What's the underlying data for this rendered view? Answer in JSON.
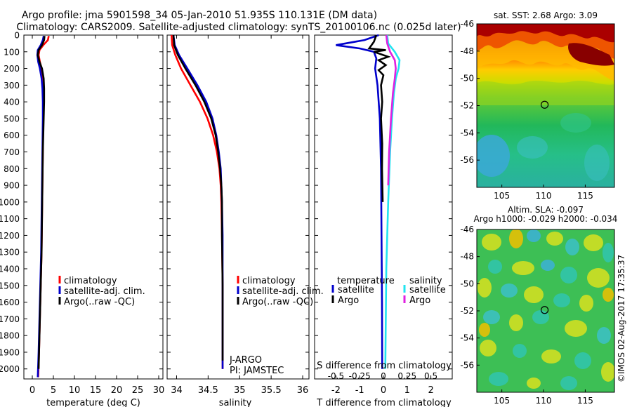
{
  "header": {
    "line1": "Argo profile: jma 5901598_34 05-Jan-2010 51.935S 110.131E (DM data)",
    "line2": "Climatology: CARS2009. Satellite-adjusted climatology: synTS_20100106.nc (0.025d later)"
  },
  "colors": {
    "clim": "#ff0000",
    "sat": "#0000cc",
    "argo": "#000000",
    "sat_s": "#22e4f0",
    "argo_s": "#e020e0"
  },
  "chart_data": [
    {
      "type": "line",
      "id": "temperature",
      "xlabel": "temperature (deg C)",
      "ylabel": "",
      "xlim": [
        -2,
        31
      ],
      "ylim": [
        2060,
        0
      ],
      "xticks": [
        "0",
        "5",
        "10",
        "15",
        "20",
        "25",
        "30"
      ],
      "yticks": [
        "0",
        "100",
        "200",
        "300",
        "400",
        "500",
        "600",
        "700",
        "800",
        "900",
        "1000",
        "1100",
        "1200",
        "1300",
        "1400",
        "1500",
        "1600",
        "1700",
        "1800",
        "1900",
        "2000"
      ],
      "legend": [
        "climatology",
        "satellite-adj. clim.",
        "Argo(..raw -QC)"
      ],
      "series": [
        {
          "name": "climatology",
          "color": "#ff0000",
          "depth": [
            5,
            30,
            60,
            90,
            120,
            160,
            200,
            260,
            320,
            400,
            500,
            700,
            900,
            1100,
            1300,
            1500,
            1700,
            1900,
            2050
          ],
          "values": [
            3.9,
            3.7,
            2.6,
            1.7,
            1.5,
            1.8,
            2.2,
            2.5,
            2.6,
            2.6,
            2.6,
            2.5,
            2.4,
            2.3,
            2.2,
            2.0,
            1.8,
            1.6,
            1.4
          ]
        },
        {
          "name": "satellite-adj. clim.",
          "color": "#0000cc",
          "depth": [
            5,
            30,
            60,
            90,
            120,
            160,
            200,
            260,
            320,
            400,
            500,
            700,
            900,
            1100,
            1300,
            1500,
            1700,
            1900,
            2050
          ],
          "values": [
            2.7,
            2.5,
            2.0,
            1.3,
            1.2,
            1.4,
            1.8,
            2.2,
            2.4,
            2.5,
            2.5,
            2.4,
            2.3,
            2.2,
            2.1,
            1.9,
            1.7,
            1.5,
            1.3
          ]
        },
        {
          "name": "Argo(..raw -QC)",
          "color": "#000000",
          "depth": [
            5,
            30,
            60,
            90,
            120,
            160,
            200,
            260,
            320,
            400,
            500,
            700,
            900,
            1100,
            1300,
            1500,
            1700,
            1900,
            2000
          ],
          "values": [
            2.9,
            2.8,
            2.3,
            1.5,
            1.3,
            1.7,
            2.3,
            2.7,
            2.8,
            2.8,
            2.7,
            2.5,
            2.4,
            2.3,
            2.2,
            2.0,
            1.8,
            1.6,
            1.5
          ]
        }
      ]
    },
    {
      "type": "line",
      "id": "salinity",
      "xlabel": "salinity",
      "xlim": [
        33.85,
        36.1
      ],
      "ylim": [
        2060,
        0
      ],
      "xticks": [
        "34",
        "34.5",
        "35",
        "35.5",
        "36"
      ],
      "legend": [
        "climatology",
        "satellite-adj. clim.",
        "Argo(..raw -QC)"
      ],
      "annotation": [
        "J-ARGO",
        "PI: JAMSTEC"
      ],
      "series": [
        {
          "name": "climatology",
          "color": "#ff0000",
          "depth": [
            0,
            60,
            120,
            200,
            300,
            400,
            500,
            600,
            700,
            800,
            900,
            1000,
            1200,
            1500,
            2000
          ],
          "values": [
            33.92,
            33.93,
            33.98,
            34.07,
            34.22,
            34.37,
            34.49,
            34.58,
            34.64,
            34.68,
            34.7,
            34.71,
            34.72,
            34.73,
            34.73
          ]
        },
        {
          "name": "satellite-adj. clim.",
          "color": "#0000cc",
          "depth": [
            0,
            60,
            120,
            200,
            300,
            400,
            500,
            600,
            700,
            800,
            900,
            1000,
            1200,
            1500,
            2000
          ],
          "values": [
            33.95,
            33.97,
            34.04,
            34.17,
            34.33,
            34.47,
            34.57,
            34.63,
            34.67,
            34.7,
            34.71,
            34.72,
            34.73,
            34.73,
            34.73
          ]
        },
        {
          "name": "Argo(..raw -QC)",
          "color": "#000000",
          "depth": [
            0,
            60,
            120,
            200,
            300,
            400,
            500,
            600,
            700,
            800,
            900,
            1000,
            1200,
            1500,
            1950
          ],
          "values": [
            33.95,
            33.96,
            34.02,
            34.14,
            34.3,
            34.44,
            34.55,
            34.62,
            34.66,
            34.69,
            34.71,
            34.72,
            34.72,
            34.73,
            34.73
          ]
        }
      ]
    },
    {
      "type": "line",
      "id": "difference",
      "xlabel": "T difference from climatology",
      "xlabel_top": "S difference from climatology",
      "xlim": [
        -2.9,
        2.9
      ],
      "ylim": [
        2060,
        0
      ],
      "xticks": [
        "-2",
        "-1",
        "0",
        "1",
        "2"
      ],
      "xticks_top": [
        "-0.5",
        "-0.25",
        "0",
        "0.25",
        "0.5"
      ],
      "legend_temperature": {
        "title": "temperature",
        "items": [
          "satellite",
          "Argo"
        ]
      },
      "legend_salinity": {
        "title": "salinity",
        "items": [
          "satellite",
          "Argo"
        ]
      },
      "series": [
        {
          "name": "temperature satellite",
          "color": "#0000cc",
          "depth": [
            0,
            30,
            60,
            80,
            100,
            140,
            200,
            300,
            500,
            800,
            1200,
            1600,
            2000
          ],
          "values": [
            -0.2,
            -0.8,
            -2.0,
            -1.0,
            -0.4,
            -0.3,
            -0.35,
            -0.25,
            -0.15,
            -0.1,
            -0.08,
            -0.06,
            -0.05
          ]
        },
        {
          "name": "temperature Argo",
          "color": "#000000",
          "depth": [
            0,
            40,
            80,
            90,
            100,
            130,
            150,
            180,
            210,
            240,
            300,
            400,
            500,
            650,
            800,
            1000
          ],
          "values": [
            -0.3,
            -0.4,
            -0.6,
            0.1,
            -0.4,
            0.2,
            -0.2,
            0.1,
            -0.2,
            0.0,
            -0.1,
            -0.05,
            -0.1,
            -0.05,
            -0.06,
            -0.03
          ]
        },
        {
          "name": "salinity satellite",
          "color": "#22e4f0",
          "depth": [
            0,
            50,
            100,
            150,
            200,
            260,
            350,
            500,
            700,
            1000,
            1400,
            2000
          ],
          "values": [
            0.04,
            0.05,
            0.12,
            0.17,
            0.16,
            0.13,
            0.11,
            0.09,
            0.07,
            0.05,
            0.03,
            0.02
          ]
        },
        {
          "name": "salinity Argo",
          "color": "#e020e0",
          "depth": [
            0,
            50,
            100,
            150,
            200,
            260,
            350,
            500,
            700,
            900
          ],
          "values": [
            0.03,
            0.04,
            0.07,
            0.12,
            0.13,
            0.12,
            0.1,
            0.08,
            0.06,
            0.05
          ]
        }
      ]
    },
    {
      "type": "heatmap",
      "id": "sst_map",
      "title": "sat. SST: 2.68 Argo: 3.09",
      "xticks": [
        "105",
        "110",
        "115"
      ],
      "yticks": [
        "-46",
        "-48",
        "-50",
        "-52",
        "-54",
        "-56"
      ],
      "xlim": [
        102,
        118.5
      ],
      "ylim": [
        -58,
        -46
      ],
      "marker": {
        "lon": 110.131,
        "lat": -51.935
      }
    },
    {
      "type": "heatmap",
      "id": "sla_map",
      "title": "Altim. SLA: -0.097",
      "subtitle": "Argo h1000: -0.029 h2000: -0.034",
      "xticks": [
        "105",
        "110",
        "115"
      ],
      "yticks": [
        "-46",
        "-48",
        "-50",
        "-52",
        "-54",
        "-56"
      ],
      "xlim": [
        102,
        118.5
      ],
      "ylim": [
        -58,
        -46
      ],
      "marker": {
        "lon": 110.131,
        "lat": -51.935
      }
    }
  ],
  "footer": {
    "credit": "©IMOS 02-Aug-2017 17:35:37"
  }
}
